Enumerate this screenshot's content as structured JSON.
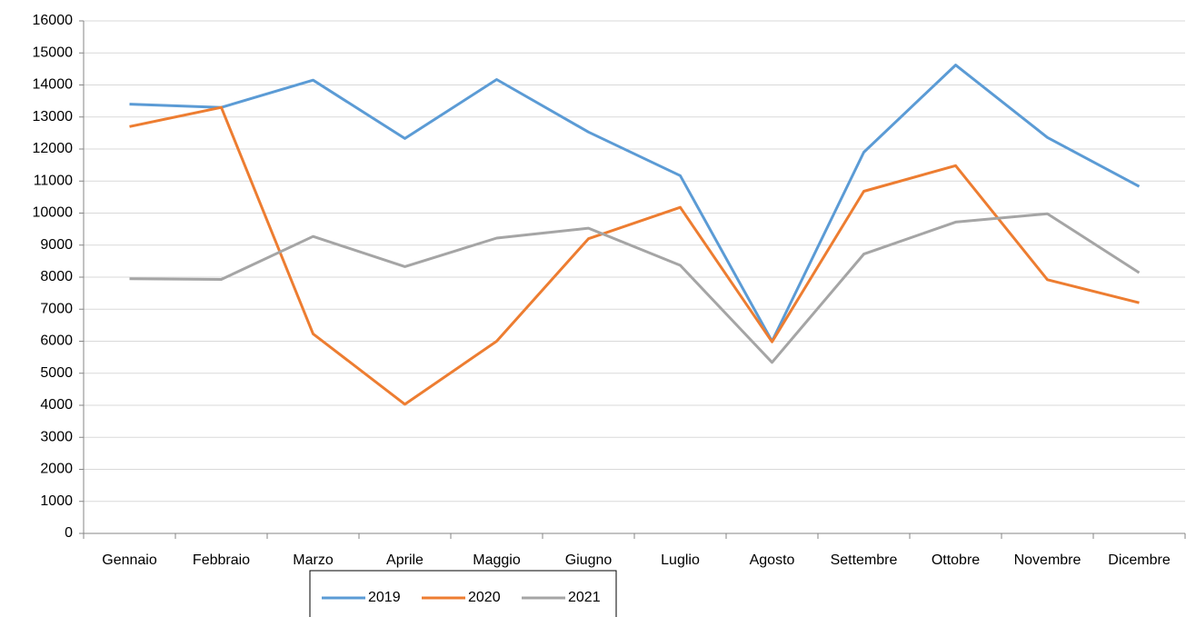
{
  "chart_data": {
    "type": "line",
    "categories": [
      "Gennaio",
      "Febbraio",
      "Marzo",
      "Aprile",
      "Maggio",
      "Giugno",
      "Luglio",
      "Agosto",
      "Settembre",
      "Ottobre",
      "Novembre",
      "Dicembre"
    ],
    "series": [
      {
        "name": "2019",
        "color": "#5b9bd5",
        "values": [
          13400,
          13300,
          14150,
          12330,
          14170,
          12530,
          11170,
          6000,
          11900,
          14620,
          12360,
          10830
        ]
      },
      {
        "name": "2020",
        "color": "#ed7d31",
        "values": [
          12700,
          13300,
          6230,
          4030,
          6000,
          9200,
          10180,
          5980,
          10680,
          11480,
          7920,
          7200
        ]
      },
      {
        "name": "2021",
        "color": "#a5a5a5",
        "values": [
          7950,
          7930,
          9270,
          8330,
          9220,
          9530,
          8370,
          5340,
          8720,
          9720,
          9980,
          8140
        ]
      }
    ],
    "ylim": [
      0,
      16000
    ],
    "yticks": [
      0,
      1000,
      2000,
      3000,
      4000,
      5000,
      6000,
      7000,
      8000,
      9000,
      10000,
      11000,
      12000,
      13000,
      14000,
      15000,
      16000
    ],
    "grid": true,
    "legend": "bottom"
  }
}
